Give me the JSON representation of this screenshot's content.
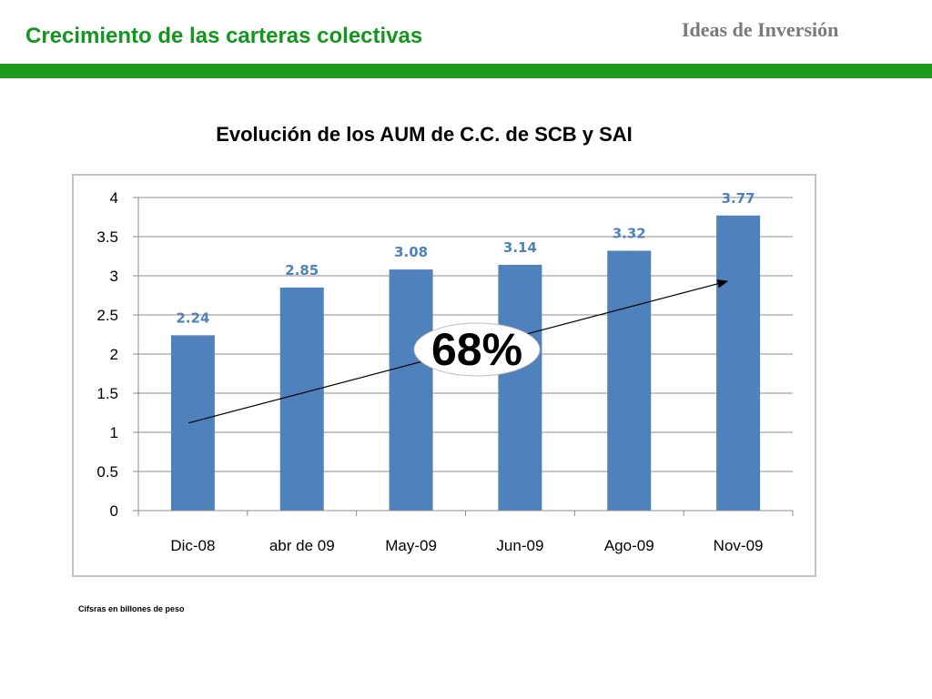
{
  "header": {
    "title": "Crecimiento de las carteras colectivas",
    "brand": "Ideas de Inversión"
  },
  "colors": {
    "title_green": "#12961e",
    "bar_green": "#1e9a1e",
    "bar_fill": "#4f81bd",
    "label_blue": "#4f81bd"
  },
  "chart_data": {
    "type": "bar",
    "title": "Evolución de los AUM de C.C. de SCB y SAI",
    "categories": [
      "Dic-08",
      "abr de 09",
      "May-09",
      "Jun-09",
      "Ago-09",
      "Nov-09"
    ],
    "values": [
      2.24,
      2.85,
      3.08,
      3.14,
      3.32,
      3.77
    ],
    "ylim": [
      0,
      4
    ],
    "yticks": [
      "0",
      "0.5",
      "1",
      "1.5",
      "2",
      "2.5",
      "3",
      "3.5",
      "4"
    ],
    "grid": true,
    "annotation": "68%"
  },
  "footnote": "Cifsras en billones de peso"
}
